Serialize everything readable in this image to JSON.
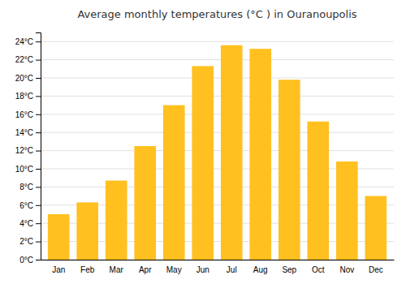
{
  "chart_data": {
    "type": "bar",
    "title": "Average monthly temperatures (°C ) in Ouranoupolis",
    "categories": [
      "Jan",
      "Feb",
      "Mar",
      "Apr",
      "May",
      "Jun",
      "Jul",
      "Aug",
      "Sep",
      "Oct",
      "Nov",
      "Dec"
    ],
    "values": [
      5.0,
      6.3,
      8.7,
      12.5,
      17.0,
      21.3,
      23.6,
      23.2,
      19.8,
      15.2,
      10.8,
      7.0
    ],
    "color": "#FFC020",
    "ylim": [
      0,
      25
    ],
    "yticks": [
      {
        "value": 0,
        "label": "0°C"
      },
      {
        "value": 2,
        "label": "2°C"
      },
      {
        "value": 4,
        "label": "4°C"
      },
      {
        "value": 6,
        "label": "6°C"
      },
      {
        "value": 8,
        "label": "8°C"
      },
      {
        "value": 10,
        "label": "10°C"
      },
      {
        "value": 12,
        "label": "12°C"
      },
      {
        "value": 14,
        "label": "14°C"
      },
      {
        "value": 16,
        "label": "16°C"
      },
      {
        "value": 18,
        "label": "18°C"
      },
      {
        "value": 20,
        "label": "20°C"
      },
      {
        "value": 22,
        "label": "22°C"
      },
      {
        "value": 24,
        "label": "24°C"
      }
    ],
    "grid": true
  }
}
